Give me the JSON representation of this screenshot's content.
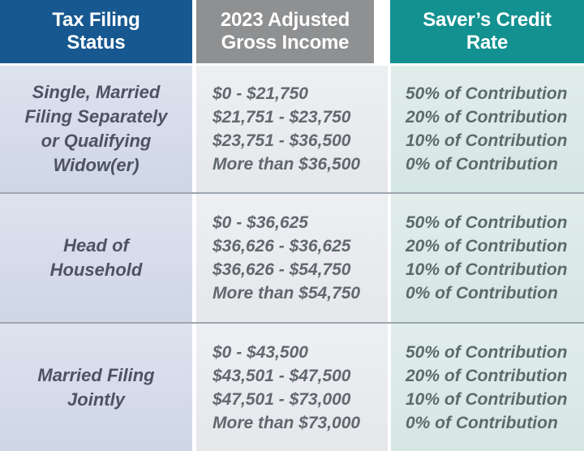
{
  "header": {
    "filing_status": {
      "line1": "Tax Filing",
      "line2": "Status"
    },
    "agi": {
      "line1": "2023 Adjusted",
      "line2": "Gross Income"
    },
    "credit_rate": {
      "line1": "Saver’s Credit",
      "line2": "Rate"
    }
  },
  "rows": [
    {
      "status_lines": [
        "Single, Married",
        "Filing Separately",
        "or Qualifying",
        "Widow(er)"
      ],
      "income_lines": [
        "$0 - $21,750",
        "$21,751 - $23,750",
        "$23,751 - $36,500",
        "More than $36,500"
      ],
      "rate_lines": [
        "50% of Contribution",
        "20% of Contribution",
        "10% of Contribution",
        "0% of Contribution"
      ]
    },
    {
      "status_lines": [
        "Head of",
        "Household"
      ],
      "income_lines": [
        "$0 - $36,625",
        "$36,626 - $36,625",
        "$36,626 - $54,750",
        "More than $54,750"
      ],
      "rate_lines": [
        "50% of Contribution",
        "20% of Contribution",
        "10% of Contribution",
        "0% of Contribution"
      ]
    },
    {
      "status_lines": [
        "Married Filing",
        "Jointly"
      ],
      "income_lines": [
        "$0 - $43,500",
        "$43,501 - $47,500",
        "$47,501 - $73,000",
        "More than $73,000"
      ],
      "rate_lines": [
        "50% of Contribution",
        "20% of Contribution",
        "10% of Contribution",
        "0% of Contribution"
      ]
    }
  ],
  "colors": {
    "header_blue": "#175890",
    "header_gray": "#8e9092",
    "header_teal": "#129190",
    "cell_blue_bg": "#d4dae8",
    "cell_gray_bg": "#eaecef",
    "cell_teal_bg": "#dceae7",
    "divider": "#9fa6ae"
  },
  "chart_data": {
    "type": "table",
    "title": "2023 Saver’s Credit Rate by Tax Filing Status and Adjusted Gross Income",
    "columns": [
      "Tax Filing Status",
      "2023 Adjusted Gross Income",
      "Saver’s Credit Rate"
    ],
    "rows": [
      {
        "filing_status": "Single, Married Filing Separately or Qualifying Widow(er)",
        "brackets": [
          {
            "agi": "$0 - $21,750",
            "rate": "50% of Contribution"
          },
          {
            "agi": "$21,751 - $23,750",
            "rate": "20% of Contribution"
          },
          {
            "agi": "$23,751 - $36,500",
            "rate": "10% of Contribution"
          },
          {
            "agi": "More than $36,500",
            "rate": "0% of Contribution"
          }
        ]
      },
      {
        "filing_status": "Head of Household",
        "brackets": [
          {
            "agi": "$0 - $36,625",
            "rate": "50% of Contribution"
          },
          {
            "agi": "$36,626 - $36,625",
            "rate": "20% of Contribution"
          },
          {
            "agi": "$36,626 - $54,750",
            "rate": "10% of Contribution"
          },
          {
            "agi": "More than $54,750",
            "rate": "0% of Contribution"
          }
        ]
      },
      {
        "filing_status": "Married Filing Jointly",
        "brackets": [
          {
            "agi": "$0 - $43,500",
            "rate": "50% of Contribution"
          },
          {
            "agi": "$43,501 - $47,500",
            "rate": "20% of Contribution"
          },
          {
            "agi": "$47,501 - $73,000",
            "rate": "10% of Contribution"
          },
          {
            "agi": "More than $73,000",
            "rate": "0% of Contribution"
          }
        ]
      }
    ]
  }
}
